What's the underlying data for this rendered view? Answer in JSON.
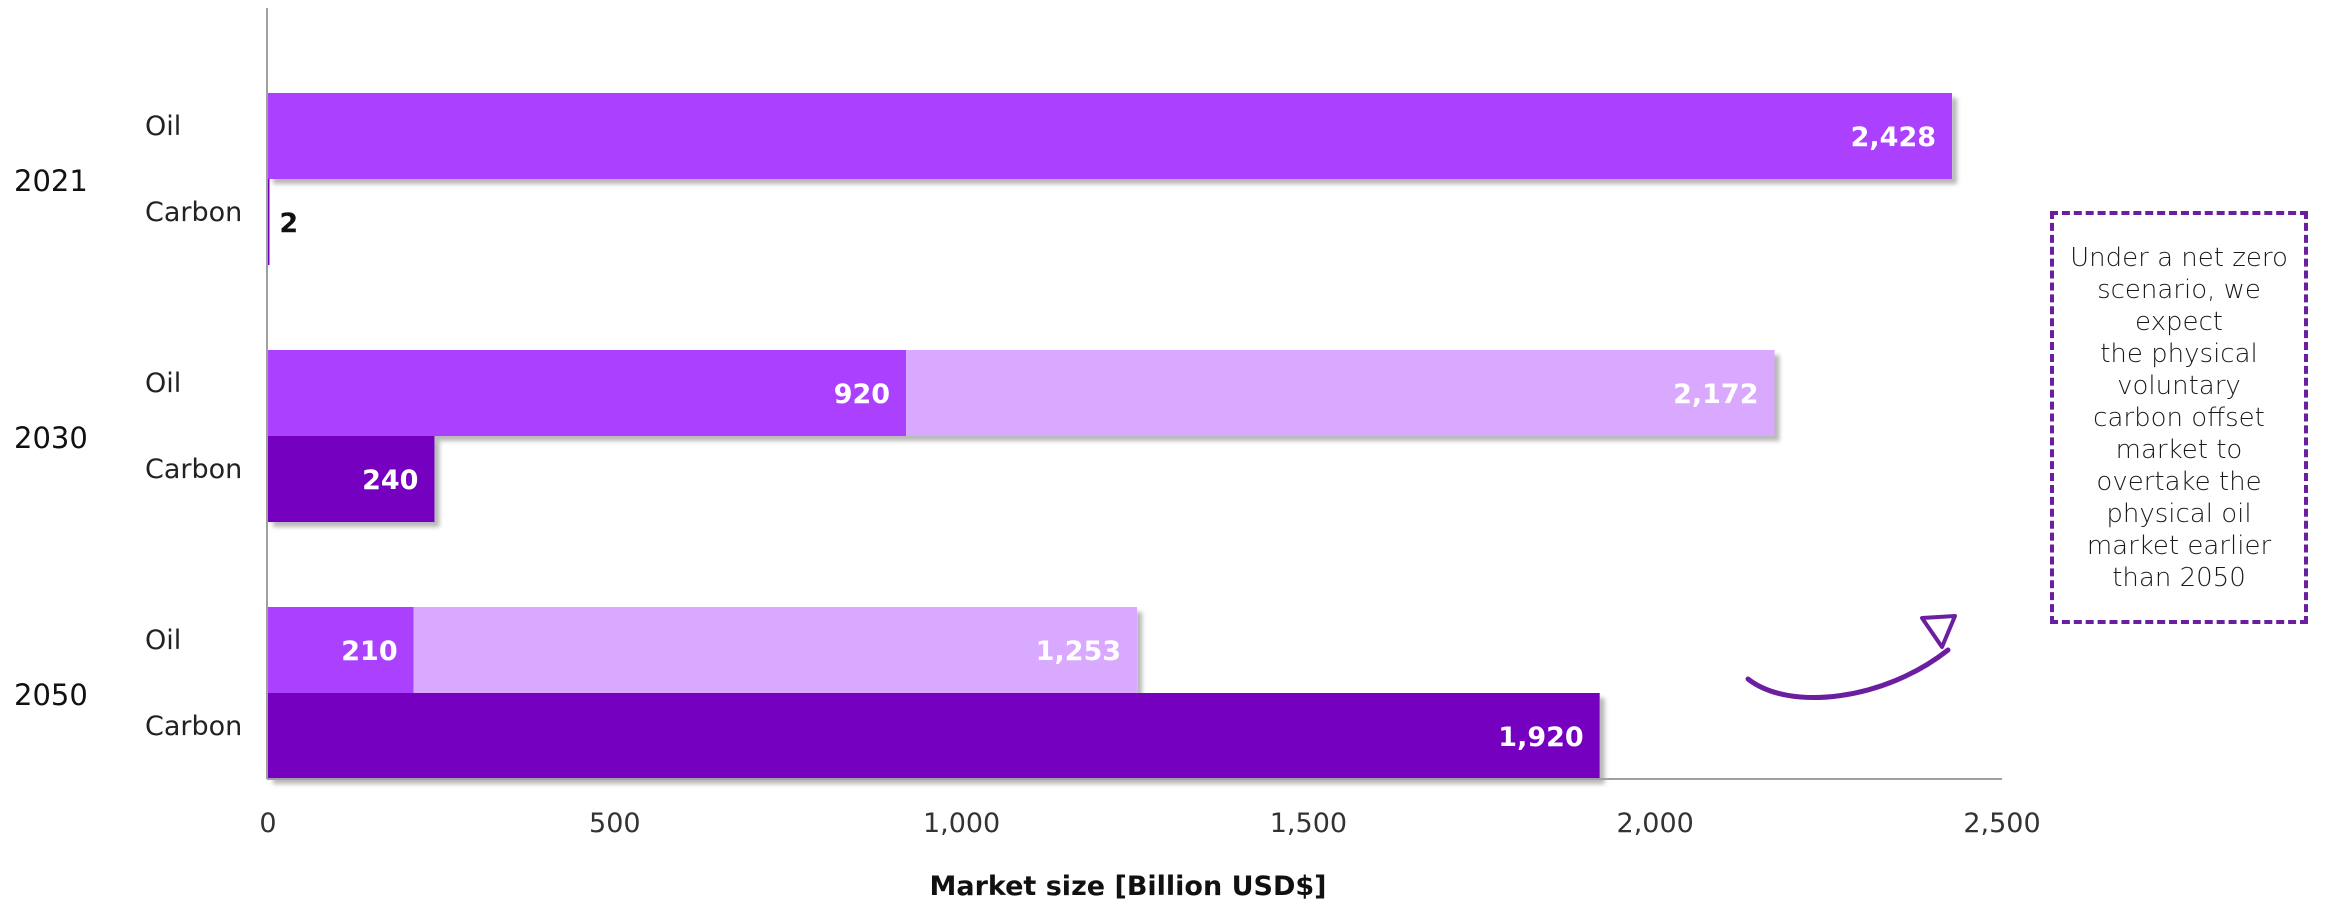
{
  "chart_data": {
    "type": "bar",
    "orientation": "horizontal",
    "stacked": true,
    "groups": [
      {
        "label": "2021",
        "bars": [
          {
            "label": "Oil",
            "segments": [
              {
                "value": 2428,
                "label": "2,428",
                "color": "#ab40ff"
              }
            ]
          },
          {
            "label": "Carbon",
            "segments": [
              {
                "value": 2,
                "label": "2",
                "color": "#7500c0",
                "label_outside": true
              }
            ]
          }
        ]
      },
      {
        "label": "2030",
        "bars": [
          {
            "label": "Oil",
            "segments": [
              {
                "value": 920,
                "label": "920",
                "color": "#ab40ff"
              },
              {
                "value": 1252,
                "label": "2,172",
                "color": "#d9a8ff"
              }
            ]
          },
          {
            "label": "Carbon",
            "segments": [
              {
                "value": 240,
                "label": "240",
                "color": "#7500c0"
              }
            ]
          }
        ]
      },
      {
        "label": "2050",
        "bars": [
          {
            "label": "Oil",
            "segments": [
              {
                "value": 210,
                "label": "210",
                "color": "#ab40ff"
              },
              {
                "value": 1043,
                "label": "1,253",
                "color": "#d9a8ff"
              }
            ]
          },
          {
            "label": "Carbon",
            "segments": [
              {
                "value": 1920,
                "label": "1,920",
                "color": "#7500c0"
              }
            ]
          }
        ]
      }
    ],
    "xlabel": "Market size [Billion USD$]",
    "xlim": [
      0,
      2500
    ],
    "xticks": [
      0,
      500,
      1000,
      1500,
      2000,
      2500
    ],
    "xtick_labels": [
      "0",
      "500",
      "1,000",
      "1,500",
      "2,000",
      "2,500"
    ],
    "grid": false
  },
  "callout": {
    "lines": [
      "Under a net zero",
      "scenario, we",
      "expect",
      "the physical",
      "voluntary",
      "carbon offset",
      "market to",
      "overtake the",
      "physical oil",
      "market earlier",
      "than 2050"
    ],
    "border_color": "#6b1fa0"
  },
  "arrow": {
    "color": "#6b1fa0"
  }
}
